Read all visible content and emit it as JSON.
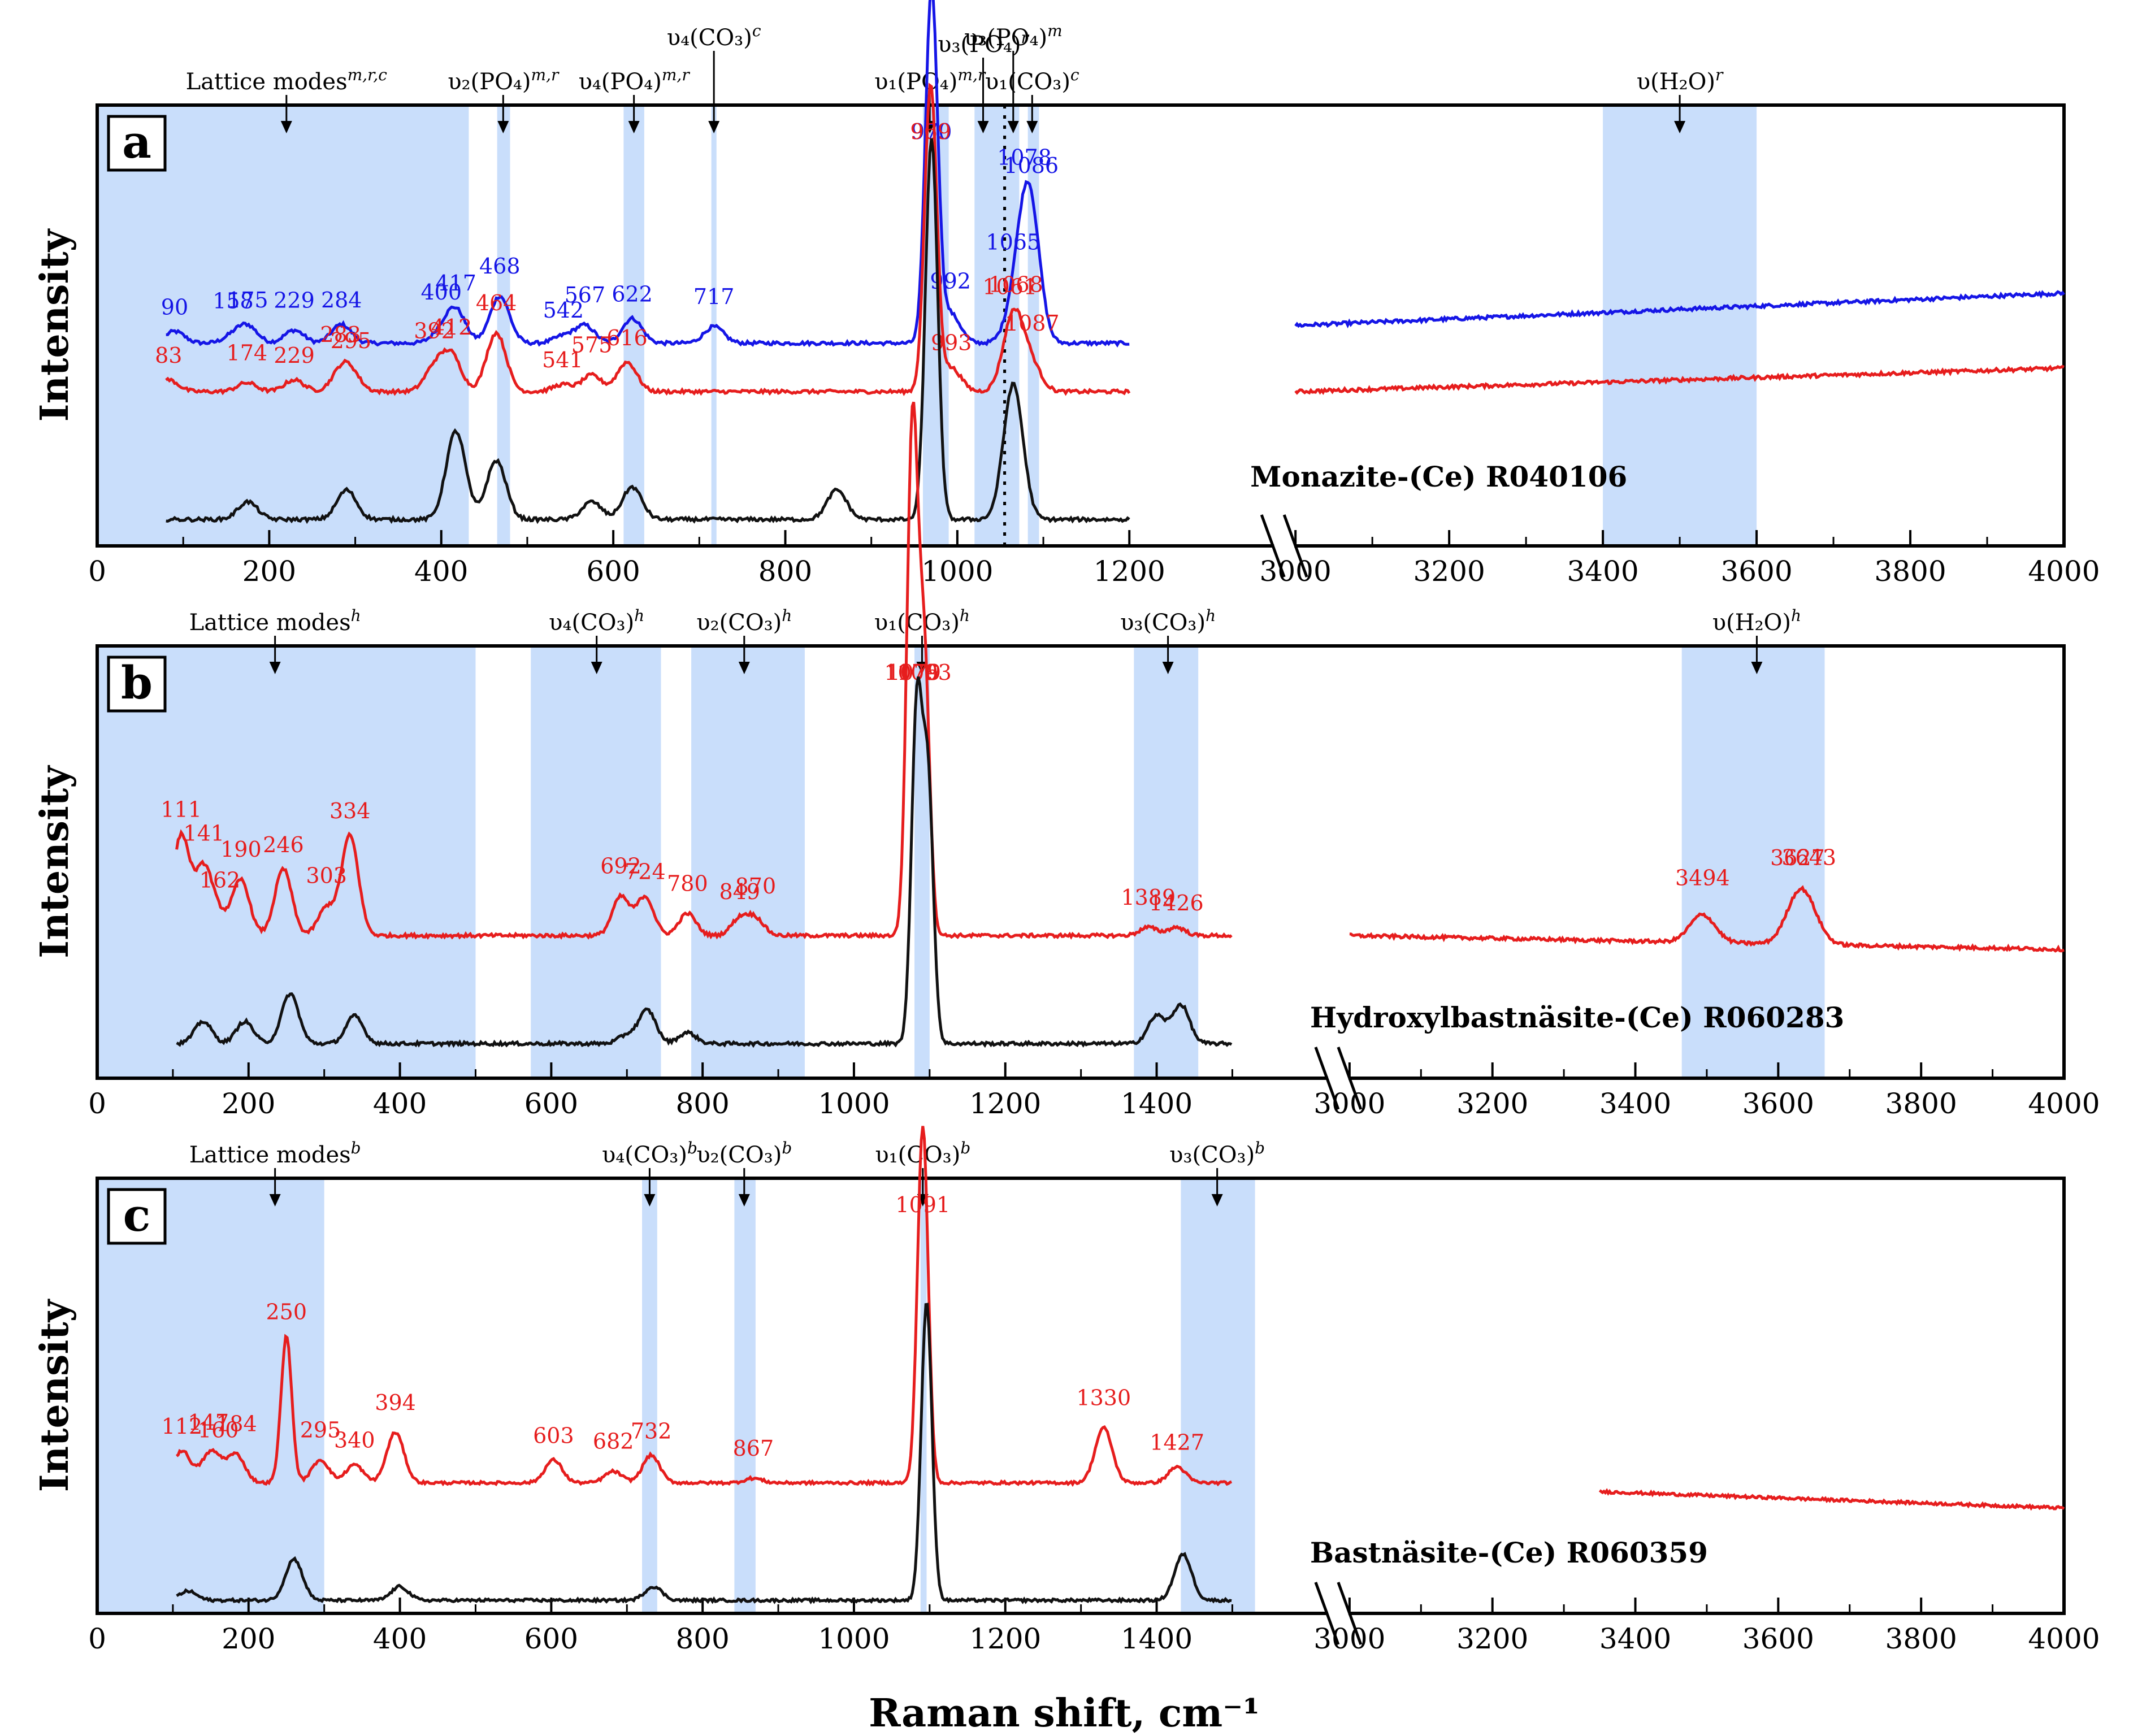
{
  "chart_data": [
    {
      "panel": "a",
      "type": "line",
      "ylabel": "Intensity",
      "xticks": [
        "0",
        "200",
        "400",
        "600",
        "800",
        "1000",
        "1200",
        "3000",
        "3200",
        "3400",
        "3600",
        "3800",
        "4000"
      ],
      "sample": "Monazite-(Ce) R040106",
      "segments": {
        "left": [
          0,
          1250
        ],
        "right": [
          3000,
          4000
        ]
      },
      "bands": [
        {
          "from": 0,
          "to": 432
        },
        {
          "from": 465,
          "to": 480
        },
        {
          "from": 612,
          "to": 636
        },
        {
          "from": 714,
          "to": 720
        },
        {
          "from": 960,
          "to": 990
        },
        {
          "from": 1020,
          "to": 1072
        },
        {
          "from": 1082,
          "to": 1095
        },
        {
          "from": 3400,
          "to": 3600
        }
      ],
      "band_labels": [
        {
          "text": "Lattice modes",
          "sup": "m,r,c",
          "x": 220
        },
        {
          "text": "υ₂(PO₄)",
          "sup": "m,r",
          "x": 472
        },
        {
          "text": "υ₄(PO₄)",
          "sup": "m,r",
          "x": 624
        },
        {
          "text": "υ₄(CO₃)",
          "sup": "c",
          "x": 717
        },
        {
          "text": "υ₁(PO₄)",
          "sup": "m,r",
          "x": 968
        },
        {
          "text": "υ₃(PO₄)",
          "sup": "r",
          "x": 1030
        },
        {
          "text": "υ₃(PO₄)",
          "sup": "m",
          "x": 1065
        },
        {
          "text": "υ₁(CO₃)",
          "sup": "c",
          "x": 1087
        },
        {
          "text": "υ(H₂O)",
          "sup": "r",
          "x": 3500
        }
      ],
      "dotted_x": 1055,
      "series": [
        {
          "name": "blue",
          "color": "#1515e6",
          "peaks": [
            [
              90,
              0.2
            ],
            [
              158,
              0.12
            ],
            [
              175,
              0.28
            ],
            [
              229,
              0.22
            ],
            [
              284,
              0.32
            ],
            [
              400,
              0.18
            ],
            [
              417,
              0.55
            ],
            [
              468,
              0.8
            ],
            [
              542,
              0.12
            ],
            [
              567,
              0.3
            ],
            [
              622,
              0.42
            ],
            [
              717,
              0.28
            ],
            [
              970,
              6.0
            ],
            [
              992,
              0.5
            ],
            [
              1065,
              0.4
            ],
            [
              1078,
              1.2
            ],
            [
              1086,
              1.6
            ]
          ],
          "labels": [
            "90",
            "158",
            "175",
            "229",
            "284",
            "400",
            "417",
            "468",
            "542",
            "567",
            "622",
            "717",
            "970",
            "992",
            "1065",
            "1078",
            "1086"
          ]
        },
        {
          "name": "red",
          "color": "#e61d1d",
          "peaks": [
            [
              83,
              0.2
            ],
            [
              174,
              0.15
            ],
            [
              229,
              0.2
            ],
            [
              283,
              0.3
            ],
            [
              295,
              0.28
            ],
            [
              392,
              0.4
            ],
            [
              412,
              0.6
            ],
            [
              464,
              1.0
            ],
            [
              541,
              0.12
            ],
            [
              575,
              0.28
            ],
            [
              616,
              0.5
            ],
            [
              969,
              5.2
            ],
            [
              993,
              0.4
            ],
            [
              1061,
              0.5
            ],
            [
              1068,
              0.9
            ],
            [
              1087,
              0.4
            ]
          ],
          "labels": [
            "83",
            "174",
            "229",
            "283",
            "295",
            "392",
            "412",
            "464",
            "541",
            "575",
            "616",
            "969",
            "993",
            "1061",
            "1068",
            "1087"
          ]
        },
        {
          "name": "black",
          "color": "#111111",
          "peaks": [
            [
              175,
              0.3
            ],
            [
              290,
              0.5
            ],
            [
              417,
              1.5
            ],
            [
              464,
              1.0
            ],
            [
              575,
              0.3
            ],
            [
              622,
              0.55
            ],
            [
              860,
              0.5
            ],
            [
              970,
              6.5
            ],
            [
              1065,
              2.3
            ]
          ],
          "labels": []
        }
      ]
    },
    {
      "panel": "b",
      "type": "line",
      "ylabel": "Intensity",
      "xticks": [
        "0",
        "200",
        "400",
        "600",
        "800",
        "1000",
        "1200",
        "1400",
        "3000",
        "3200",
        "3400",
        "3600",
        "3800",
        "4000"
      ],
      "sample": "Hydroxylbastnäsite-(Ce) R060283",
      "segments": {
        "left": [
          0,
          1550
        ],
        "right": [
          3000,
          4000
        ]
      },
      "bands": [
        {
          "from": 0,
          "to": 500
        },
        {
          "from": 573,
          "to": 745
        },
        {
          "from": 785,
          "to": 935
        },
        {
          "from": 1080,
          "to": 1100
        },
        {
          "from": 1370,
          "to": 1455
        },
        {
          "from": 3465,
          "to": 3665
        }
      ],
      "band_labels": [
        {
          "text": "Lattice modes",
          "sup": "h",
          "x": 235
        },
        {
          "text": "υ₄(CO₃)",
          "sup": "h",
          "x": 660
        },
        {
          "text": "υ₂(CO₃)",
          "sup": "h",
          "x": 855
        },
        {
          "text": "υ₁(CO₃)",
          "sup": "h",
          "x": 1090
        },
        {
          "text": "υ₃(CO₃)",
          "sup": "h",
          "x": 1415
        },
        {
          "text": "υ(H₂O)",
          "sup": "h",
          "x": 3570
        }
      ],
      "series": [
        {
          "name": "red",
          "color": "#e61d1d",
          "peaks": [
            [
              111,
              1.8
            ],
            [
              141,
              1.2
            ],
            [
              162,
              0.3
            ],
            [
              190,
              1.0
            ],
            [
              246,
              1.2
            ],
            [
              303,
              0.5
            ],
            [
              334,
              1.8
            ],
            [
              692,
              0.7
            ],
            [
              724,
              0.7
            ],
            [
              780,
              0.4
            ],
            [
              849,
              0.3
            ],
            [
              870,
              0.3
            ],
            [
              1076,
              5.4
            ],
            [
              1079,
              4.0
            ],
            [
              1093,
              4.9
            ],
            [
              1389,
              0.15
            ],
            [
              1426,
              0.15
            ],
            [
              3494,
              0.5
            ],
            [
              3627,
              0.7
            ],
            [
              3643,
              0.4
            ]
          ],
          "labels": [
            "111",
            "141",
            "162",
            "190",
            "246",
            "303",
            "334",
            "692",
            "724",
            "780",
            "849",
            "870",
            "1076",
            "1079",
            "1093",
            "1389",
            "1426",
            "3494",
            "3627",
            "3643"
          ]
        },
        {
          "name": "black",
          "color": "#111111",
          "peaks": [
            [
              140,
              0.4
            ],
            [
              195,
              0.4
            ],
            [
              255,
              0.9
            ],
            [
              340,
              0.5
            ],
            [
              700,
              0.15
            ],
            [
              727,
              0.6
            ],
            [
              780,
              0.2
            ],
            [
              1083,
              6.0
            ],
            [
              1098,
              4.6
            ],
            [
              1400,
              0.5
            ],
            [
              1432,
              0.7
            ]
          ],
          "labels": []
        }
      ]
    },
    {
      "panel": "c",
      "type": "line",
      "ylabel": "Intensity",
      "xaxis_title": "Raman shift, cm⁻¹",
      "xticks": [
        "0",
        "200",
        "400",
        "600",
        "800",
        "1000",
        "1200",
        "1400",
        "3000",
        "3200",
        "3400",
        "3600",
        "3800",
        "4000"
      ],
      "sample": "Bastnäsite-(Ce) R060359",
      "segments": {
        "left": [
          0,
          1550
        ],
        "right": [
          3000,
          4000
        ]
      },
      "bands": [
        {
          "from": 0,
          "to": 300
        },
        {
          "from": 720,
          "to": 740
        },
        {
          "from": 842,
          "to": 870
        },
        {
          "from": 1088,
          "to": 1096
        },
        {
          "from": 1432,
          "to": 1530
        }
      ],
      "band_labels": [
        {
          "text": "Lattice modes",
          "sup": "b",
          "x": 235
        },
        {
          "text": "υ₄(CO₃)",
          "sup": "b",
          "x": 730
        },
        {
          "text": "υ₂(CO₃)",
          "sup": "b",
          "x": 855
        },
        {
          "text": "υ₁(CO₃)",
          "sup": "b",
          "x": 1091
        },
        {
          "text": "υ₃(CO₃)",
          "sup": "b",
          "x": 1480
        }
      ],
      "series": [
        {
          "name": "red",
          "color": "#e61d1d",
          "peaks": [
            [
              112,
              0.7
            ],
            [
              147,
              0.5
            ],
            [
              160,
              0.3
            ],
            [
              184,
              0.6
            ],
            [
              250,
              3.2
            ],
            [
              295,
              0.5
            ],
            [
              340,
              0.4
            ],
            [
              394,
              1.1
            ],
            [
              603,
              0.5
            ],
            [
              682,
              0.25
            ],
            [
              732,
              0.6
            ],
            [
              867,
              0.1
            ],
            [
              1091,
              7.8
            ],
            [
              1330,
              1.2
            ],
            [
              1427,
              0.35
            ]
          ],
          "labels": [
            "112",
            "147",
            "160",
            "184",
            "250",
            "295",
            "340",
            "394",
            "603",
            "682",
            "732",
            "867",
            "1091",
            "1330",
            "1427"
          ]
        },
        {
          "name": "black",
          "color": "#111111",
          "peaks": [
            [
              120,
              0.2
            ],
            [
              260,
              0.9
            ],
            [
              400,
              0.3
            ],
            [
              735,
              0.3
            ],
            [
              1096,
              6.5
            ],
            [
              1435,
              1.0
            ]
          ],
          "labels": []
        }
      ]
    }
  ]
}
